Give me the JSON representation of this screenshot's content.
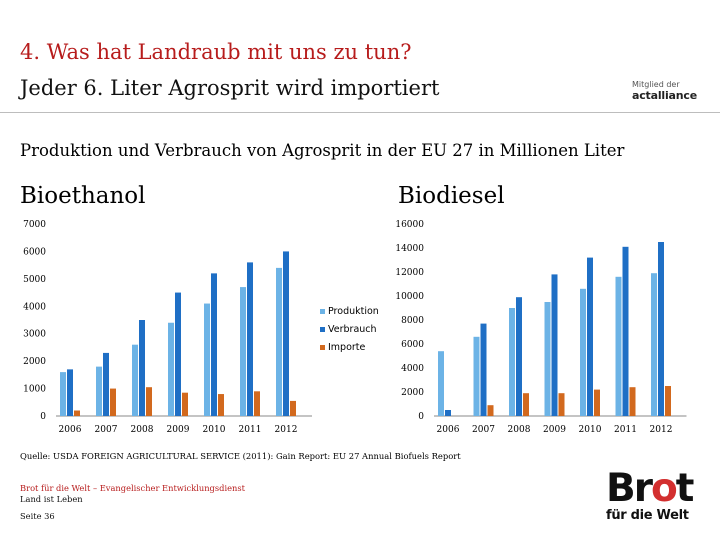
{
  "header": {
    "title_line1": "4. Was hat Landraub mit uns zu tun?",
    "title_line2": "Jeder 6. Liter Agrosprit wird importiert",
    "logo_small": "Mitglied der",
    "logo_big": "actalliance"
  },
  "subtitle": "Produktion und Verbrauch von Agrosprit in der EU 27 in Millionen Liter",
  "colors": {
    "produktion": "#6cb3e6",
    "verbrauch": "#1f6fc5",
    "importe": "#d2691e",
    "title_red": "#b71c1c"
  },
  "chart_data": [
    {
      "type": "bar",
      "title": "Bioethanol",
      "categories": [
        "2006",
        "2007",
        "2008",
        "2009",
        "2010",
        "2011",
        "2012"
      ],
      "series": [
        {
          "name": "Produktion",
          "values": [
            1600,
            1800,
            2600,
            3400,
            4100,
            4700,
            5400
          ]
        },
        {
          "name": "Verbrauch",
          "values": [
            1700,
            2300,
            3500,
            4500,
            5200,
            5600,
            6000
          ]
        },
        {
          "name": "Importe",
          "values": [
            200,
            1000,
            1050,
            850,
            800,
            900,
            550
          ]
        }
      ],
      "ylim": [
        0,
        7000
      ],
      "yticks": [
        0,
        1000,
        2000,
        3000,
        4000,
        5000,
        6000,
        7000
      ],
      "grid": false,
      "legend": "right"
    },
    {
      "type": "bar",
      "title": "Biodiesel",
      "categories": [
        "2006",
        "2007",
        "2008",
        "2009",
        "2010",
        "2011",
        "2012"
      ],
      "series": [
        {
          "name": "Produktion",
          "values": [
            5400,
            6600,
            9000,
            9500,
            10600,
            11600,
            11900
          ]
        },
        {
          "name": "Verbrauch",
          "values": [
            500,
            7700,
            9900,
            11800,
            13200,
            14100,
            14500
          ]
        },
        {
          "name": "Importe",
          "values": [
            0,
            900,
            1900,
            1900,
            2200,
            2400,
            2500
          ]
        }
      ],
      "ylim": [
        0,
        16000
      ],
      "yticks": [
        0,
        2000,
        4000,
        6000,
        8000,
        10000,
        12000,
        14000,
        16000
      ],
      "grid": false,
      "legend": "none"
    }
  ],
  "legend": {
    "items": [
      {
        "label": "Produktion",
        "color": "#6cb3e6"
      },
      {
        "label": "Verbrauch",
        "color": "#1f6fc5"
      },
      {
        "label": "Importe",
        "color": "#d2691e"
      }
    ]
  },
  "source": "Quelle: USDA FOREIGN AGRICULTURAL SERVICE (2011): Gain Report: EU 27 Annual Biofuels Report",
  "footer": {
    "org": "Brot für die Welt – Evangelischer Entwicklungsdienst",
    "dept": "Land ist Leben",
    "page": "Seite 36"
  },
  "brand": {
    "word_a": "Br",
    "word_o": "o",
    "word_b": "t",
    "sub": "für die Welt"
  }
}
